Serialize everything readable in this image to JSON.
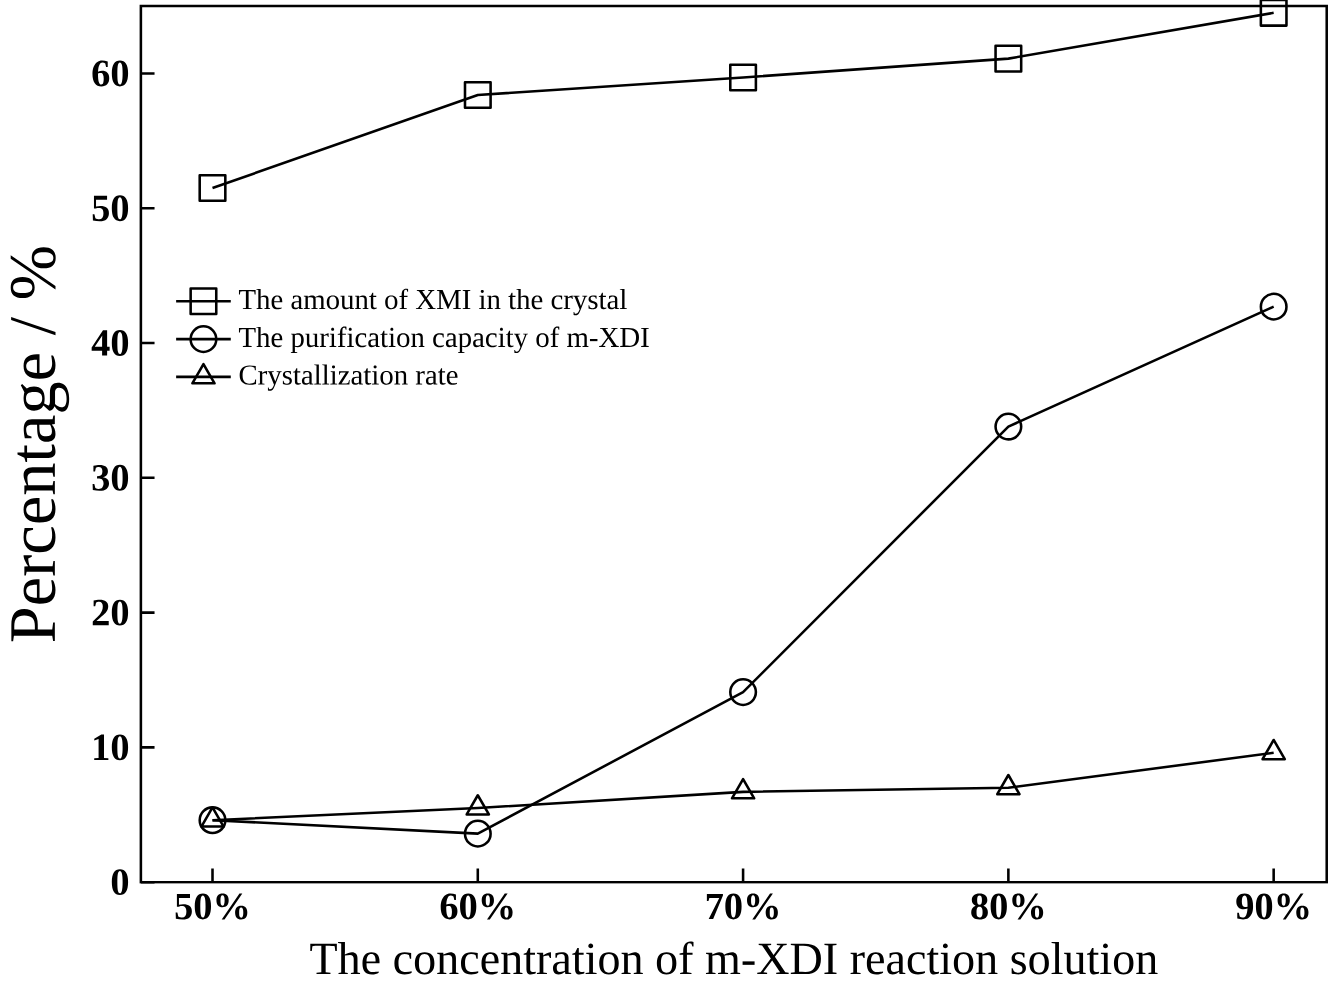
{
  "chart_data": {
    "type": "line",
    "xlabel": "The concentration of m-XDI reaction solution",
    "ylabel": "Percentage / %",
    "categories": [
      "50%",
      "60%",
      "70%",
      "80%",
      "90%"
    ],
    "series": [
      {
        "name": "The amount of XMI in the crystal",
        "color": "#000000",
        "marker": "square",
        "values": [
          51.5,
          58.4,
          59.7,
          61.1,
          64.5
        ]
      },
      {
        "name": "The purification capacity of m-XDI",
        "color": "#000000",
        "marker": "circle",
        "values": [
          4.6,
          3.6,
          14.1,
          33.8,
          42.7
        ]
      },
      {
        "name": "Crystallization rate",
        "color": "#000000",
        "marker": "triangle",
        "values": [
          4.6,
          5.5,
          6.7,
          7.0,
          9.6
        ]
      }
    ],
    "ylim": [
      0,
      65
    ],
    "yticks": [
      0,
      10,
      20,
      30,
      40,
      50,
      60
    ],
    "grid": false,
    "legend": "left",
    "line_style": "solid"
  }
}
